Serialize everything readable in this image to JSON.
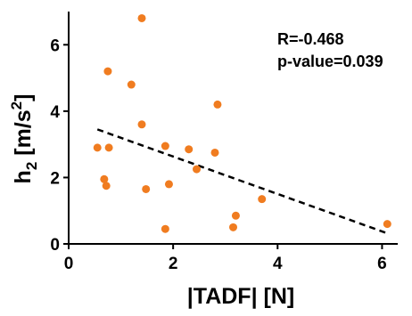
{
  "chart_data": {
    "type": "scatter",
    "xlabel": "|TADF|  [N]",
    "ylabel_base": "h",
    "ylabel_sub": "2",
    "ylabel_unit_prefix": " [m/s",
    "ylabel_sup": "2",
    "ylabel_unit_suffix": "]",
    "xlim": [
      0,
      6.3
    ],
    "ylim": [
      0,
      7
    ],
    "xticks": [
      "0",
      "2",
      "4",
      "6"
    ],
    "yticks": [
      "0",
      "2",
      "4",
      "6"
    ],
    "xtick_values": [
      0,
      2,
      4,
      6
    ],
    "ytick_values": [
      0,
      2,
      4,
      6
    ],
    "grid": false,
    "annotations": [
      "R=-0.468",
      "p-value=0.039"
    ],
    "series": [
      {
        "points": [
          {
            "x": 1.4,
            "y": 6.8
          },
          {
            "x": 0.75,
            "y": 5.2
          },
          {
            "x": 1.2,
            "y": 4.8
          },
          {
            "x": 2.85,
            "y": 4.2
          },
          {
            "x": 1.4,
            "y": 3.6
          },
          {
            "x": 0.55,
            "y": 2.9
          },
          {
            "x": 0.77,
            "y": 2.9
          },
          {
            "x": 1.85,
            "y": 2.95
          },
          {
            "x": 2.3,
            "y": 2.85
          },
          {
            "x": 2.8,
            "y": 2.75
          },
          {
            "x": 2.45,
            "y": 2.25
          },
          {
            "x": 0.68,
            "y": 1.95
          },
          {
            "x": 0.72,
            "y": 1.75
          },
          {
            "x": 1.48,
            "y": 1.65
          },
          {
            "x": 1.92,
            "y": 1.8
          },
          {
            "x": 3.7,
            "y": 1.35
          },
          {
            "x": 3.2,
            "y": 0.85
          },
          {
            "x": 3.15,
            "y": 0.5
          },
          {
            "x": 1.85,
            "y": 0.45
          },
          {
            "x": 6.1,
            "y": 0.6
          }
        ],
        "trendline": {
          "x": [
            0.55,
            6.1
          ],
          "y": [
            3.45,
            0.32
          ]
        }
      }
    ],
    "colors": {
      "points": "#f07c20",
      "trendline": "#000000",
      "axis": "#000000"
    }
  }
}
